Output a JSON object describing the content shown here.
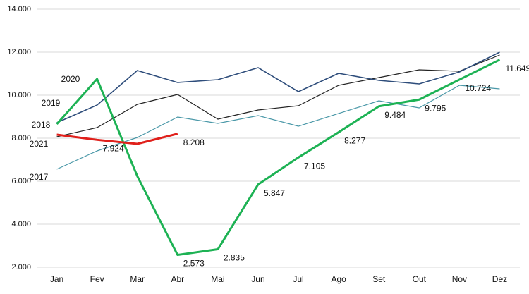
{
  "chart_data": {
    "type": "line",
    "categories": [
      "Jan",
      "Fev",
      "Mar",
      "Abr",
      "Mai",
      "Jun",
      "Jul",
      "Ago",
      "Set",
      "Out",
      "Nov",
      "Dez"
    ],
    "ylim": [
      2000,
      14000
    ],
    "yticks": [
      {
        "value": 2000,
        "label": "2.000"
      },
      {
        "value": 4000,
        "label": "4.000"
      },
      {
        "value": 6000,
        "label": "6.000"
      },
      {
        "value": 8000,
        "label": "8.000"
      },
      {
        "value": 10000,
        "label": "10.000"
      },
      {
        "value": 12000,
        "label": "12.000"
      },
      {
        "value": 14000,
        "label": "14.000"
      }
    ],
    "grid": true,
    "series": [
      {
        "name": "2017",
        "color": "#4a98a8",
        "width": 1.2,
        "values": [
          6557,
          7410,
          8033,
          8984,
          8689,
          9049,
          8557,
          9148,
          9738,
          9410,
          10459,
          10295
        ]
      },
      {
        "name": "2018",
        "color": "#222222",
        "width": 1.2,
        "values": [
          8066,
          8492,
          9574,
          10033,
          8885,
          9311,
          9508,
          10459,
          10820,
          11180,
          11115,
          11869
        ]
      },
      {
        "name": "2019",
        "color": "#2e4d7b",
        "width": 1.6,
        "values": [
          8721,
          9541,
          11148,
          10590,
          10721,
          11279,
          10164,
          11016,
          10689,
          10525,
          11082,
          12000
        ]
      },
      {
        "name": "2020",
        "color": "#1db254",
        "width": 3,
        "values": [
          8656,
          10754,
          6230,
          2573,
          2835,
          5847,
          7105,
          8277,
          9484,
          9795,
          10724,
          11649
        ],
        "value_labels": [
          null,
          null,
          null,
          "2.573",
          "2.835",
          "5.847",
          "7.105",
          "8.277",
          "9.484",
          "9.795",
          "10.724",
          "11.649"
        ]
      },
      {
        "name": "2021",
        "color": "#e0201b",
        "width": 3,
        "values": [
          8164,
          7924,
          7738,
          8208,
          null,
          null,
          null,
          null,
          null,
          null,
          null,
          null
        ],
        "value_labels": [
          null,
          "7.924",
          null,
          "8.208",
          null,
          null,
          null,
          null,
          null,
          null,
          null,
          null
        ]
      }
    ]
  }
}
